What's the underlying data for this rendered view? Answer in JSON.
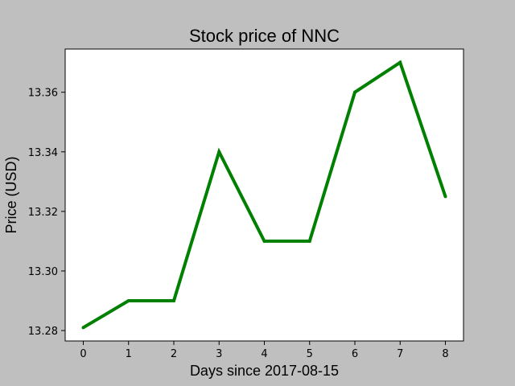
{
  "chart_data": {
    "type": "line",
    "title": "Stock price of NNC",
    "xlabel": "Days since 2017-08-15",
    "ylabel": "Price (USD)",
    "x": [
      0,
      1,
      2,
      3,
      4,
      5,
      6,
      7,
      8
    ],
    "series": [
      {
        "values": [
          13.281,
          13.29,
          13.29,
          13.34,
          13.31,
          13.31,
          13.36,
          13.37,
          13.325
        ],
        "color": "#008000"
      }
    ],
    "xlim": [
      -0.4,
      8.4
    ],
    "ylim": [
      13.2765,
      13.3745
    ],
    "xticks": [
      "0",
      "1",
      "2",
      "3",
      "4",
      "5",
      "6",
      "7",
      "8"
    ],
    "yticks": [
      "13.28",
      "13.30",
      "13.32",
      "13.34",
      "13.36"
    ],
    "grid": false,
    "legend": "none"
  },
  "colors": {
    "figure_background": "#bfbfbf",
    "plot_background": "#ffffff",
    "line": "#008000"
  }
}
